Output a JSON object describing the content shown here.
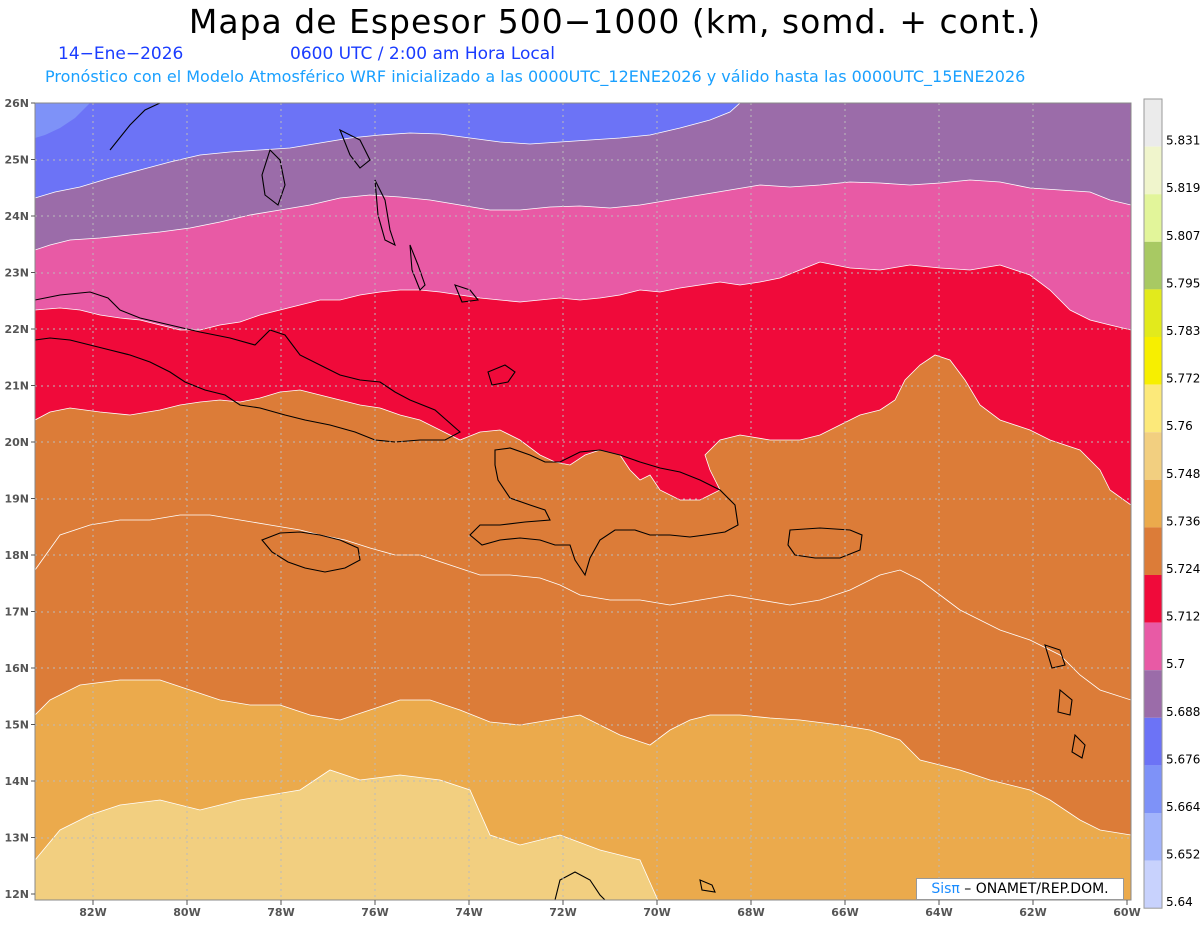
{
  "header": {
    "title": "Mapa de Espesor 500−1000 (km, somd. + cont.)",
    "date": "14−Ene−2026",
    "time": "0600 UTC / 2:00 am Hora Local",
    "model_line": "Pronóstico con el Modelo Atmosférico WRF inicializado a las 0000UTC_12ENE2026 y válido hasta las  0000UTC_15ENE2026"
  },
  "axes": {
    "lat_labels": [
      "26N",
      "25N",
      "24N",
      "23N",
      "22N",
      "21N",
      "20N",
      "19N",
      "18N",
      "17N",
      "16N",
      "15N",
      "14N",
      "13N",
      "12N"
    ],
    "lon_labels": [
      "82W",
      "80W",
      "78W",
      "76W",
      "74W",
      "72W",
      "70W",
      "68W",
      "66W",
      "64W",
      "62W",
      "60W"
    ]
  },
  "colorbar": {
    "labels": [
      "5.831",
      "5.819",
      "5.807",
      "5.795",
      "5.783",
      "5.772",
      "5.76",
      "5.748",
      "5.736",
      "5.724",
      "5.712",
      "5.7",
      "5.688",
      "5.676",
      "5.664",
      "5.652",
      "5.64"
    ],
    "colors": [
      "#ebebeb",
      "#f0f5cc",
      "#e2f59a",
      "#a8c963",
      "#e2ea1c",
      "#f7ef00",
      "#fce97a",
      "#f2cf80",
      "#ebaa4c",
      "#dc7c38",
      "#f00a3a",
      "#e85aa5",
      "#9b6ca9",
      "#6c73f6",
      "#7e92f8",
      "#a2b4fb",
      "#c8d2fd"
    ]
  },
  "credit": {
    "sis": "Sisπ",
    "rest": " – ONAMET/REP.DOM."
  }
}
